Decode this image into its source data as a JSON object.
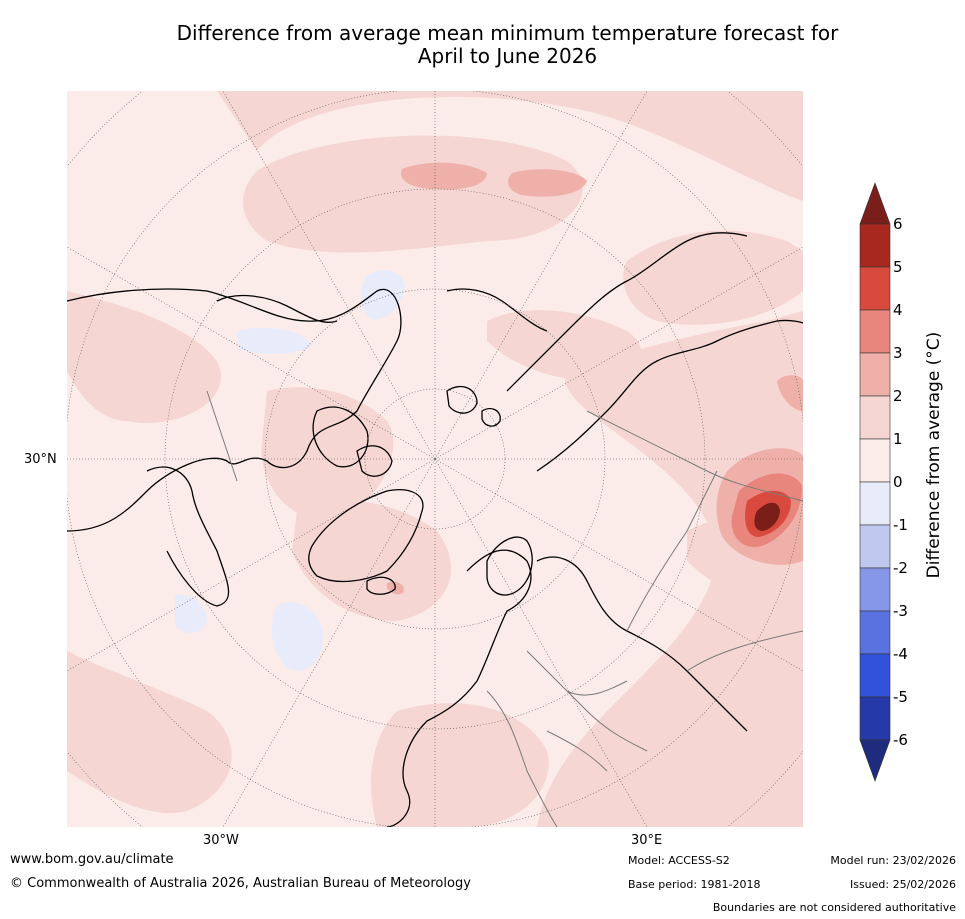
{
  "title": {
    "line1": "Difference from average mean minimum temperature forecast for",
    "line2": "April to June 2026"
  },
  "map": {
    "lat_label": "30°N",
    "lon_labels": [
      "30°W",
      "30°E"
    ]
  },
  "colorbar": {
    "label": "Difference from average (°C)",
    "ticks": [
      "6",
      "5",
      "4",
      "3",
      "2",
      "1",
      "0",
      "-1",
      "-2",
      "-3",
      "-4",
      "-5",
      "-6"
    ],
    "colors": {
      "over": "#7a1e1a",
      "b56": "#a8281f",
      "b45": "#d94a3e",
      "b34": "#e8857c",
      "b23": "#eeb0a9",
      "b12": "#f5d6d3",
      "b01": "#fbecea",
      "bm10": "#e8ebfa",
      "bm21": "#c0c8f0",
      "bm32": "#8797e8",
      "bm43": "#5a72e0",
      "bm54": "#2f52d8",
      "bm65": "#2539a8",
      "under": "#1f2c7e"
    }
  },
  "footer": {
    "website": "www.bom.gov.au/climate",
    "copyright": "© Commonwealth of Australia 2026, Australian Bureau of Meteorology",
    "model": "Model: ACCESS-S2",
    "base_period": "Base period: 1981-2018",
    "model_run": "Model run: 23/02/2026",
    "issued": "Issued: 25/02/2026",
    "boundaries": "Boundaries are not considered authoritative"
  }
}
